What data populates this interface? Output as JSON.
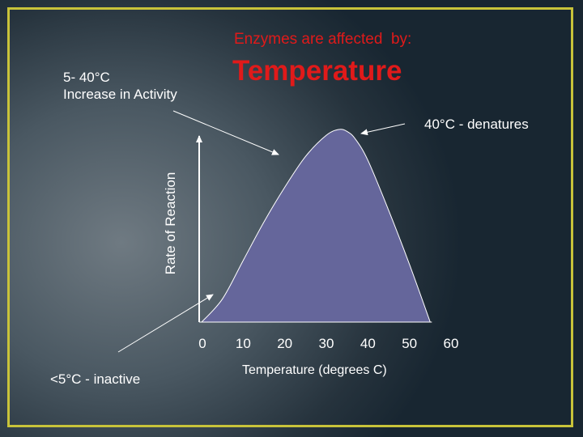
{
  "slide": {
    "subtitle": "Enzymes are affected  by:",
    "title": "Temperature"
  },
  "annotations": {
    "increase_range": "5- 40°C",
    "increase_text": "Increase in Activity",
    "denature": "40°C - denatures",
    "inactive": "<5°C - inactive"
  },
  "colors": {
    "title": "#e01a1a",
    "curve_fill": "#65669b",
    "frame": "#c8c33a",
    "text": "#ffffff"
  },
  "chart_data": {
    "type": "area",
    "title": "Temperature",
    "xlabel": "Temperature (degrees C)",
    "ylabel": "Rate of Reaction",
    "xlim": [
      0,
      60
    ],
    "ylim": [
      0,
      100
    ],
    "x_ticks": [
      0,
      10,
      20,
      30,
      40,
      50,
      60
    ],
    "x_tick_labels": [
      "0",
      "10",
      "20",
      "30",
      "40",
      "50",
      "60"
    ],
    "grid": false,
    "legend": "none",
    "series": [
      {
        "x": [
          0,
          5,
          10,
          15,
          20,
          25,
          30,
          33,
          35,
          37,
          40,
          45,
          50,
          55
        ],
        "y": [
          0,
          12,
          32,
          52,
          70,
          86,
          97,
          100,
          99,
          95,
          84,
          58,
          30,
          0
        ]
      }
    ]
  }
}
